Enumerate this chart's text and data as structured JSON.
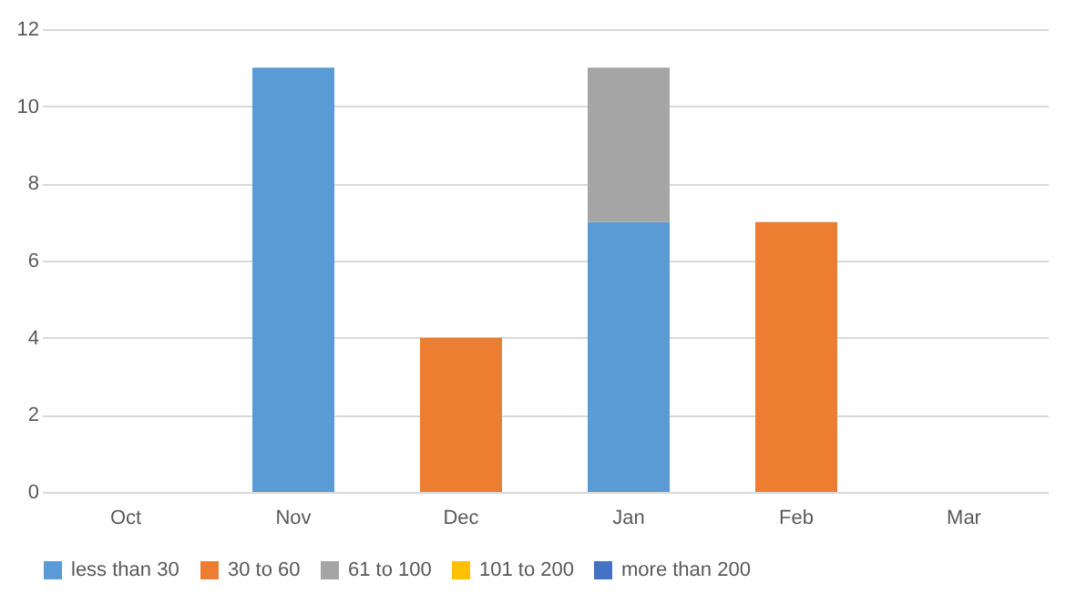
{
  "chart_data": {
    "type": "bar",
    "stacked": true,
    "categories": [
      "Oct",
      "Nov",
      "Dec",
      "Jan",
      "Feb",
      "Mar"
    ],
    "series": [
      {
        "name": "less than 30",
        "color": "#5b9bd5",
        "values": [
          null,
          11,
          null,
          7,
          null,
          null
        ]
      },
      {
        "name": "30 to 60",
        "color": "#ed7d31",
        "values": [
          null,
          null,
          4,
          null,
          7,
          null
        ]
      },
      {
        "name": "61 to 100",
        "color": "#a5a5a5",
        "values": [
          null,
          null,
          null,
          4,
          null,
          null
        ]
      },
      {
        "name": "101 to 200",
        "color": "#ffc000",
        "values": [
          null,
          null,
          null,
          null,
          null,
          null
        ]
      },
      {
        "name": "more than 200",
        "color": "#4472c4",
        "values": [
          null,
          null,
          null,
          null,
          null,
          null
        ]
      }
    ],
    "ylim": [
      0,
      12
    ],
    "yticks": [
      0,
      2,
      4,
      6,
      8,
      10,
      12
    ],
    "grid": "y",
    "legend": "bottom"
  }
}
